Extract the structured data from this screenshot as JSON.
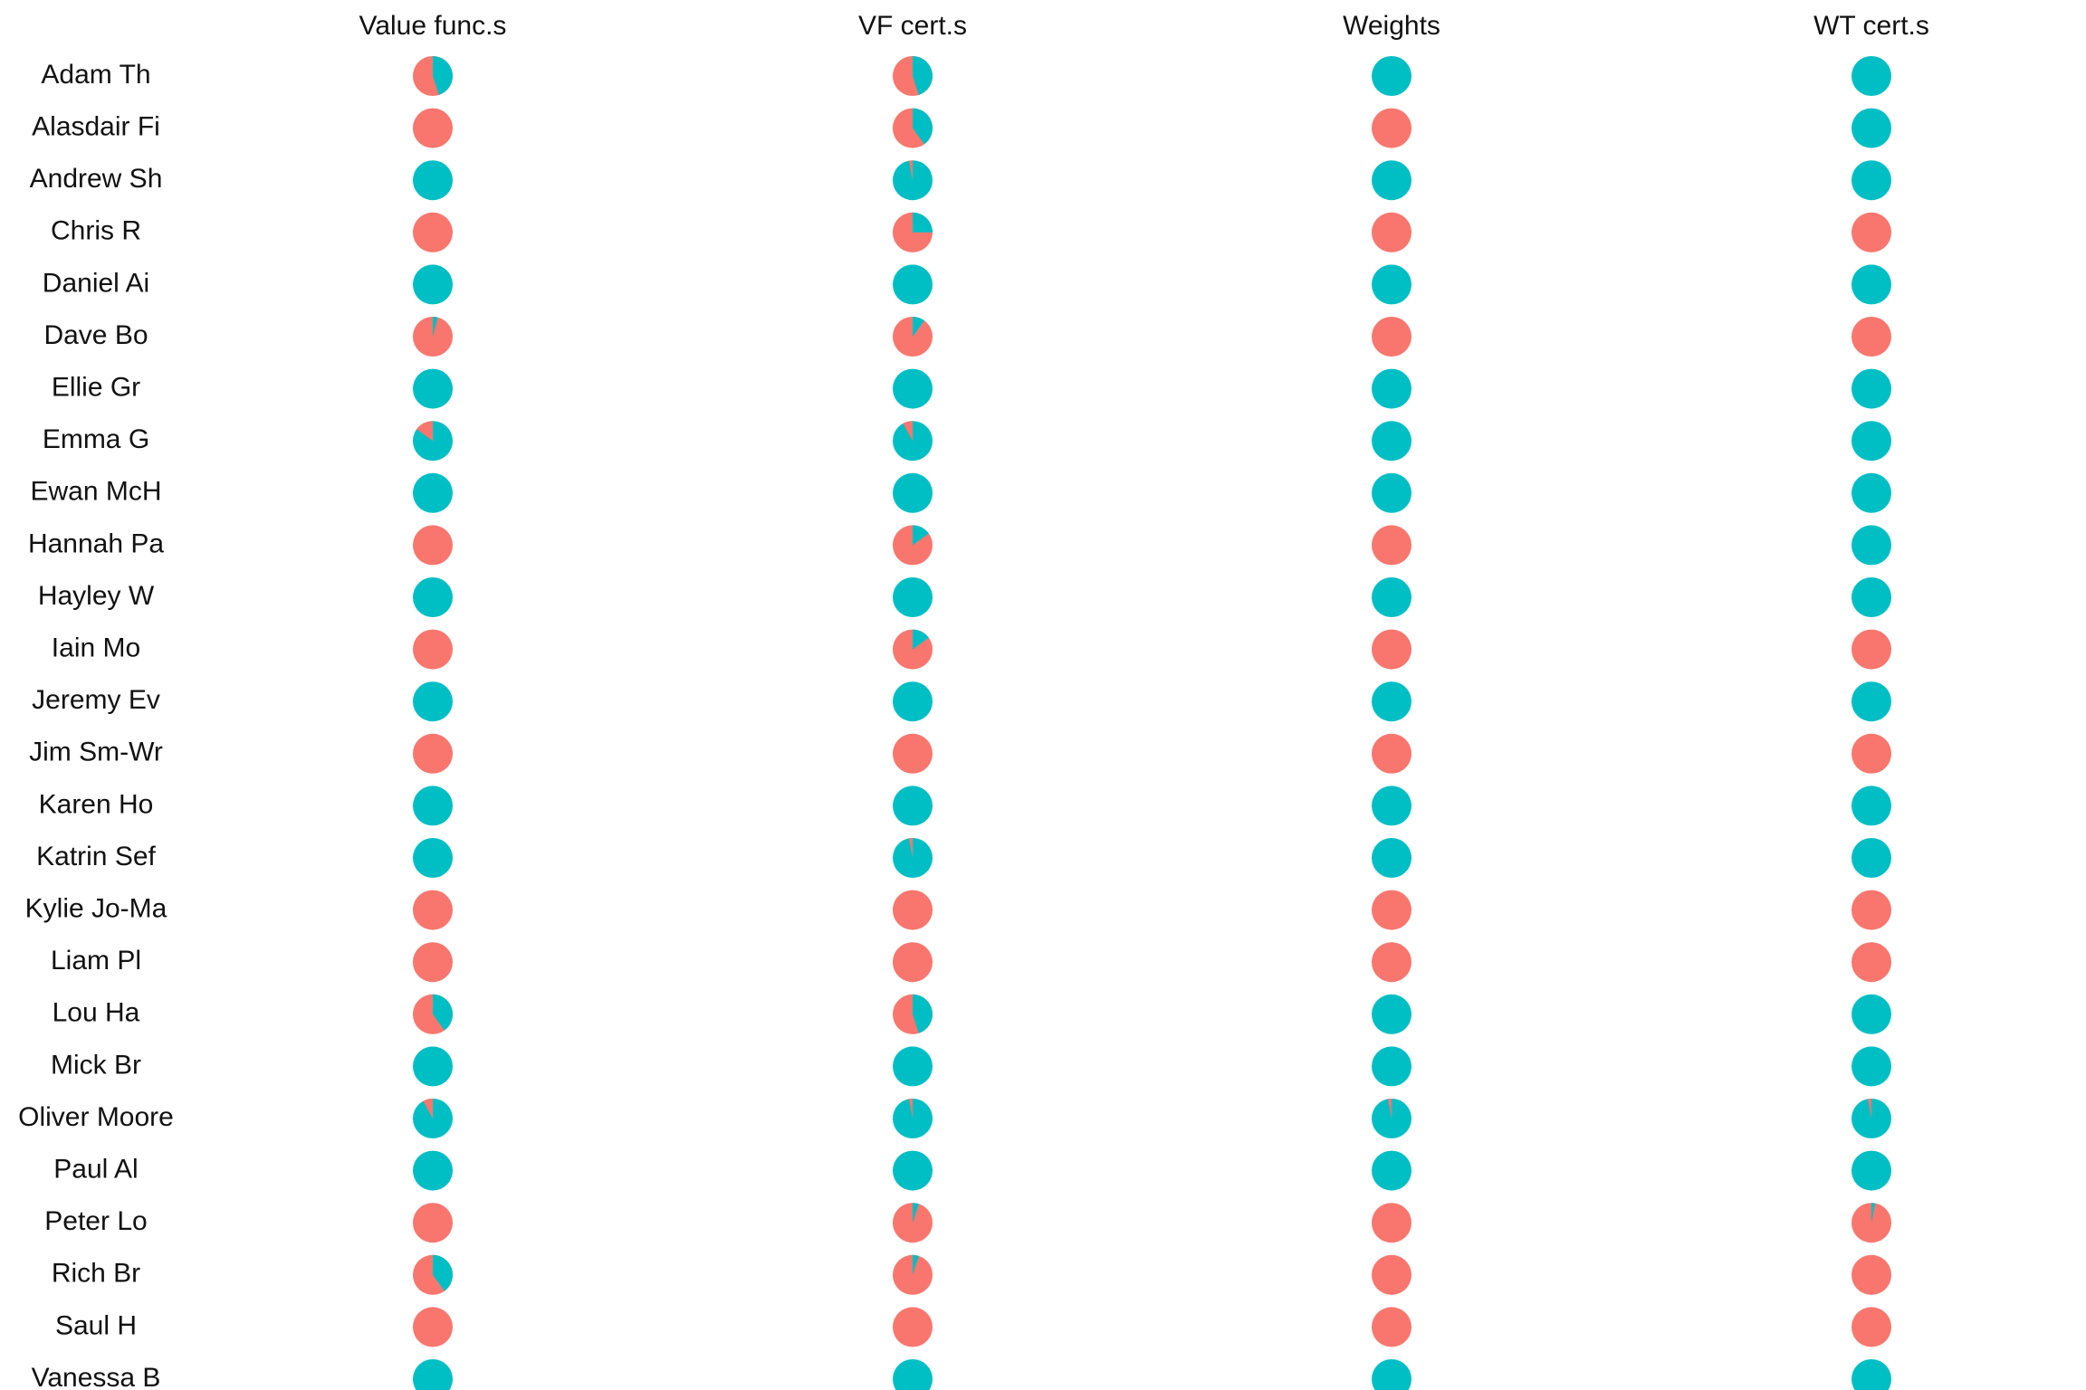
{
  "chart_data": {
    "type": "pie",
    "title": "",
    "xlabel": "",
    "ylabel": "",
    "grid": false,
    "legend": "none",
    "columns": [
      "Value func.s",
      "VF cert.s",
      "Weights",
      "WT cert.s"
    ],
    "rows": [
      "Adam Th",
      "Alasdair Fi",
      "Andrew Sh",
      "Chris R",
      "Daniel Ai",
      "Dave Bo",
      "Ellie Gr",
      "Emma G",
      "Ewan McH",
      "Hannah Pa",
      "Hayley W",
      "Iain Mo",
      "Jeremy Ev",
      "Jim Sm-Wr",
      "Karen Ho",
      "Katrin Sef",
      "Kylie Jo-Ma",
      "Liam Pl",
      "Lou Ha",
      "Mick Br",
      "Oliver Moore",
      "Paul Al",
      "Peter Lo",
      "Rich Br",
      "Saul H",
      "Vanessa B"
    ],
    "series_colors": {
      "teal": "#00BFC4",
      "salmon": "#F8766D"
    },
    "teal_share": [
      [
        0.45,
        0.45,
        1.0,
        1.0
      ],
      [
        0.0,
        0.4,
        0.0,
        1.0
      ],
      [
        1.0,
        0.97,
        1.0,
        1.0
      ],
      [
        0.0,
        0.25,
        0.0,
        0.0
      ],
      [
        1.0,
        1.0,
        1.0,
        1.0
      ],
      [
        0.04,
        0.1,
        0.0,
        0.0
      ],
      [
        1.0,
        1.0,
        1.0,
        1.0
      ],
      [
        0.85,
        0.92,
        1.0,
        1.0
      ],
      [
        1.0,
        1.0,
        1.0,
        1.0
      ],
      [
        0.0,
        0.15,
        0.0,
        1.0
      ],
      [
        1.0,
        1.0,
        1.0,
        1.0
      ],
      [
        0.0,
        0.15,
        0.0,
        0.0
      ],
      [
        1.0,
        1.0,
        1.0,
        1.0
      ],
      [
        0.0,
        0.0,
        0.0,
        0.0
      ],
      [
        1.0,
        1.0,
        1.0,
        1.0
      ],
      [
        1.0,
        0.97,
        1.0,
        1.0
      ],
      [
        0.0,
        0.0,
        0.0,
        0.0
      ],
      [
        0.0,
        0.0,
        0.0,
        0.0
      ],
      [
        0.4,
        0.45,
        1.0,
        1.0
      ],
      [
        1.0,
        1.0,
        1.0,
        1.0
      ],
      [
        0.92,
        0.97,
        0.97,
        0.97
      ],
      [
        1.0,
        1.0,
        1.0,
        1.0
      ],
      [
        0.0,
        0.05,
        0.0,
        0.03
      ],
      [
        0.4,
        0.05,
        0.0,
        0.0
      ],
      [
        0.0,
        0.0,
        0.0,
        0.0
      ],
      [
        1.0,
        1.0,
        1.0,
        1.0
      ]
    ]
  }
}
